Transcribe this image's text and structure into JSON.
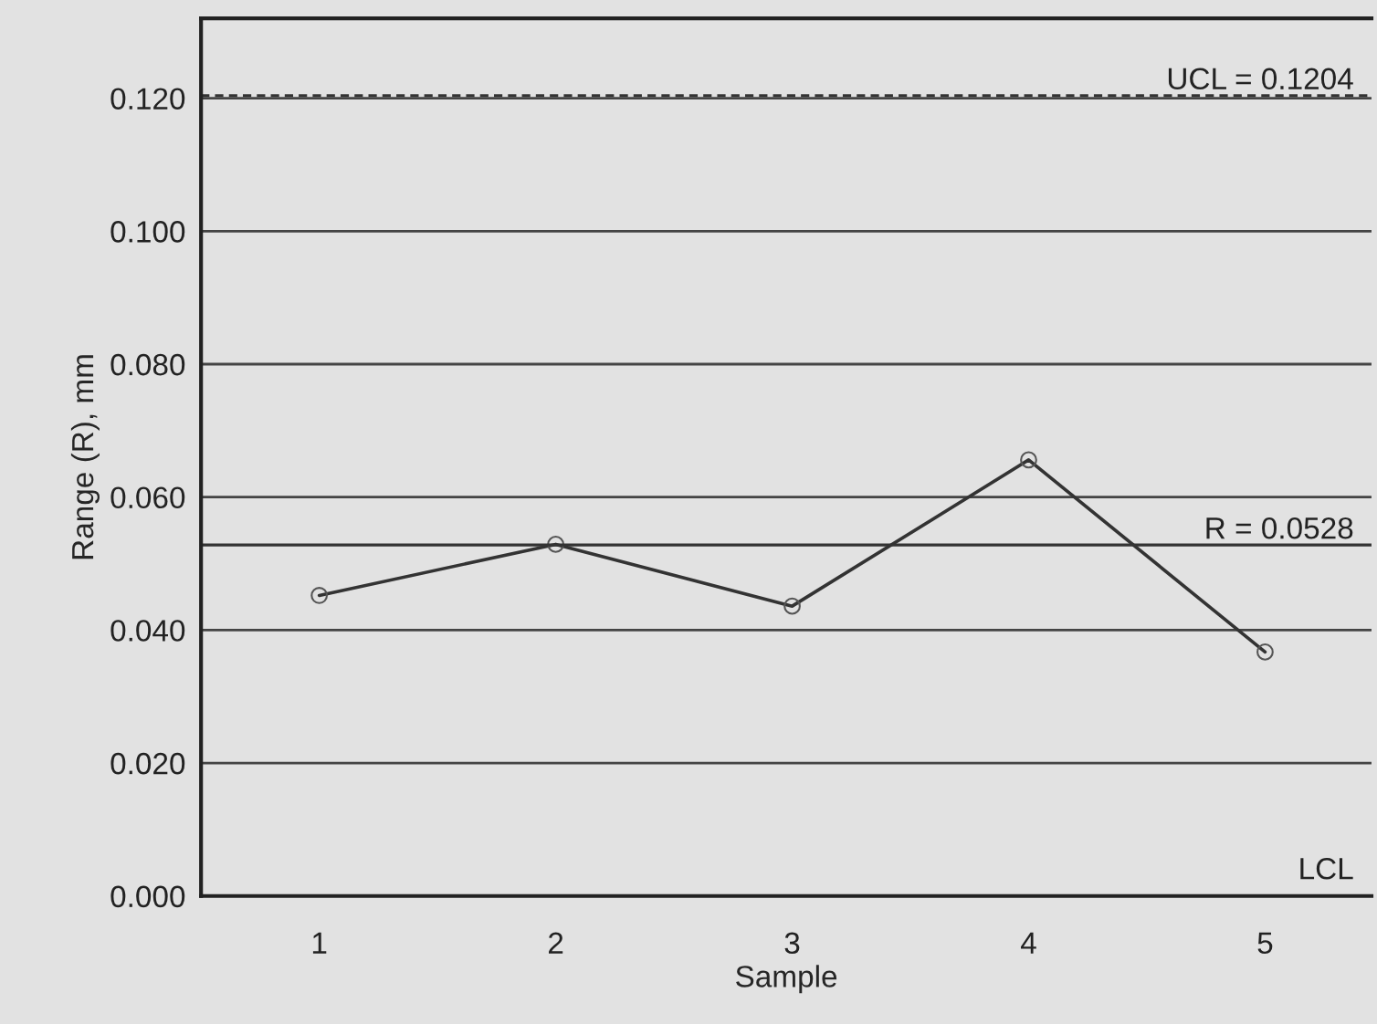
{
  "chart_data": {
    "type": "line",
    "xlabel": "Sample",
    "ylabel": "Range (R), mm",
    "categories": [
      "1",
      "2",
      "3",
      "4",
      "5"
    ],
    "series": [
      {
        "color": "#333333",
        "values": [
          0.0452,
          0.0529,
          0.0436,
          0.0656,
          0.0367
        ]
      }
    ],
    "marker": "circle",
    "line_style": "solid",
    "ylim": [
      0,
      0.132
    ],
    "yticks": [
      {
        "value": 0,
        "label": "0.000"
      },
      {
        "value": 0.02,
        "label": "0.020"
      },
      {
        "value": 0.04,
        "label": "0.040"
      },
      {
        "value": 0.06,
        "label": "0.060"
      },
      {
        "value": 0.08,
        "label": "0.080"
      },
      {
        "value": 0.1,
        "label": "0.100"
      },
      {
        "value": 0.12,
        "label": "0.120"
      }
    ],
    "grid": "y",
    "ref_lines": [
      {
        "axis": "y",
        "value": 0.1204,
        "label": "UCL = 0.1204",
        "line_style": "dashed",
        "color": "#333333"
      },
      {
        "axis": "y",
        "value": 0.0528,
        "label": "R = 0.0528",
        "line_style": "solid",
        "color": "#333333"
      }
    ],
    "annotations": [
      "LCL"
    ]
  }
}
